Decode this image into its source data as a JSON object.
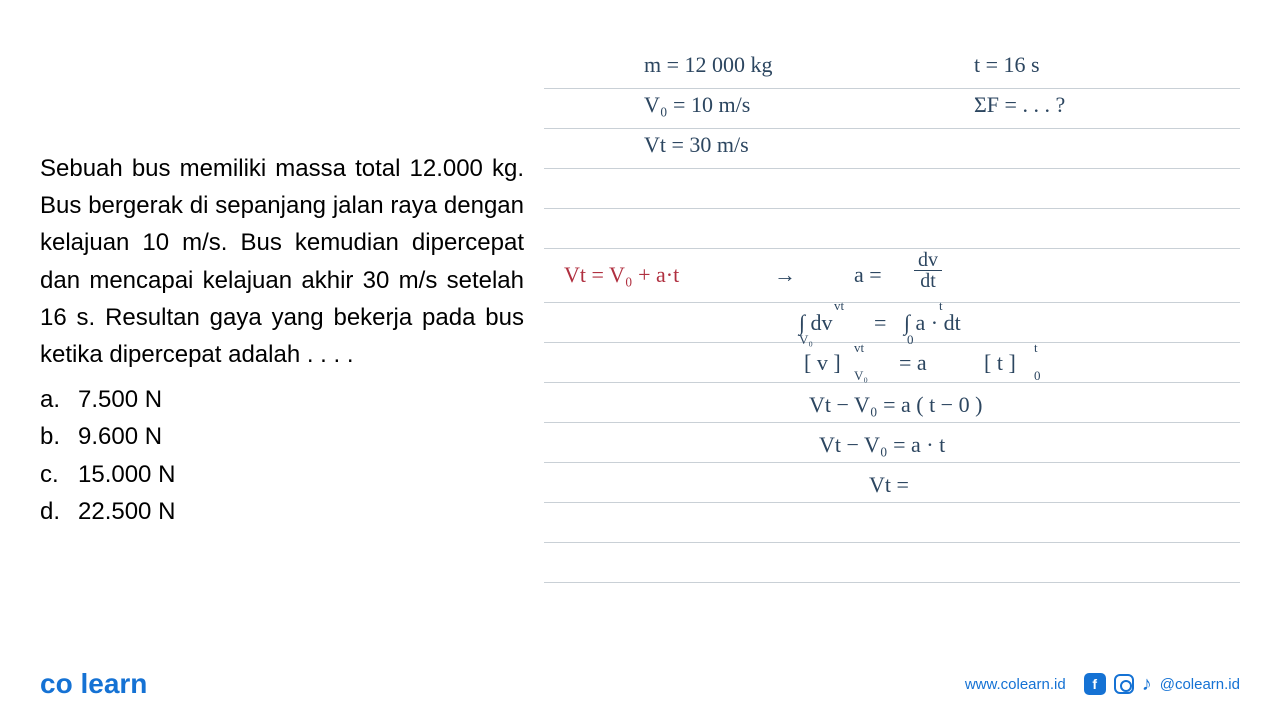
{
  "question": {
    "text": "Sebuah bus memiliki massa total 12.000 kg. Bus bergerak di sepanjang jalan raya dengan kelajuan 10 m/s. Bus kemudian dipercepat dan mencapai kelajuan akhir 30 m/s setelah 16 s. Resultan gaya yang bekerja pada bus ketika dipercepat adalah . . . .",
    "options": [
      {
        "letter": "a.",
        "text": "7.500 N"
      },
      {
        "letter": "b.",
        "text": "9.600 N"
      },
      {
        "letter": "c.",
        "text": "15.000 N"
      },
      {
        "letter": "d.",
        "text": "22.500 N"
      }
    ],
    "fontsize": 24,
    "color": "#000000"
  },
  "handwriting": {
    "color_main": "#2c4660",
    "color_accent": "#b03040",
    "font_family": "Segoe Script",
    "fontsize": 22,
    "lines": {
      "m": "m  =  12 000  kg",
      "t": "t = 16 s",
      "v0": "V₀  =  10  m/s",
      "sf": "ΣF  =  . . .  ?",
      "vt": "Vt  =  30  m/s",
      "eq1_left": "Vt = V₀ + a·t",
      "arrow": "→",
      "a_eq": "a  =",
      "frac_num": "dv",
      "frac_den": "dt",
      "int_left": "∫ dv",
      "int_lim_lo1": "V₀",
      "int_lim_hi1": "vt",
      "int_eq": "=",
      "int_right": "∫ a · dt",
      "int_lim_lo2": "0",
      "int_lim_hi2": "t",
      "bracket_v": "[ v ]",
      "bracket_v_lo": "V₀",
      "bracket_v_hi": "vt",
      "eq2": "=  a",
      "bracket_t": "[ t ]",
      "bracket_t_lo": "0",
      "bracket_t_hi": "t",
      "line4": "Vt − V₀   =   a  ( t − 0 )",
      "line5": "Vt − V₀   =   a · t",
      "line6": "Vt  ="
    },
    "paper": {
      "line_color": "#c9d0d6",
      "line_positions": [
        68,
        108,
        148,
        188,
        228,
        282,
        322,
        362,
        402,
        442,
        482,
        522,
        562
      ]
    }
  },
  "footer": {
    "logo": {
      "text_left": "co",
      "text_right": "learn",
      "color": "#1572d4",
      "fontsize": 28
    },
    "url": "www.colearn.id",
    "handle": "@colearn.id",
    "social_color": "#1572d4"
  }
}
